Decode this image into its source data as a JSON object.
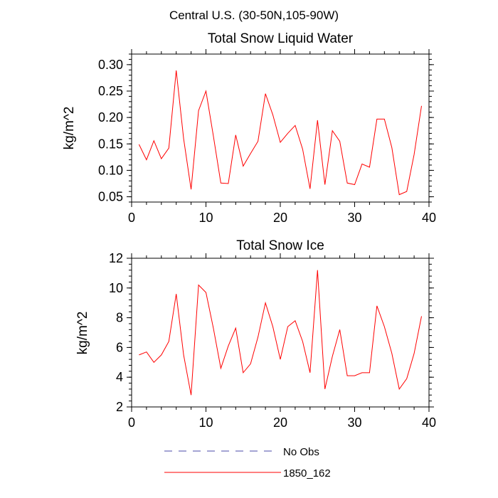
{
  "figure_title": "Central U.S. (30-50N,105-90W)",
  "chart_data": [
    {
      "type": "line",
      "title": "Total Snow Liquid Water",
      "xlabel": "",
      "ylabel": "kg/m^2",
      "xlim": [
        0,
        40
      ],
      "ylim": [
        0.04,
        0.32
      ],
      "x_ticks": [
        0,
        10,
        20,
        30,
        40
      ],
      "y_ticks": [
        0.05,
        0.1,
        0.15,
        0.2,
        0.25,
        0.3
      ],
      "y_tick_labels": [
        "0.05",
        "0.10",
        "0.15",
        "0.20",
        "0.25",
        "0.30"
      ],
      "x": [
        1,
        2,
        3,
        4,
        5,
        6,
        7,
        8,
        9,
        10,
        11,
        12,
        13,
        14,
        15,
        16,
        17,
        18,
        19,
        20,
        21,
        22,
        23,
        24,
        25,
        26,
        27,
        28,
        29,
        30,
        31,
        32,
        33,
        34,
        35,
        36,
        37,
        38,
        39
      ],
      "series": [
        {
          "name": "1850_162",
          "color": "#ff0000",
          "values": [
            0.149,
            0.12,
            0.156,
            0.122,
            0.142,
            0.289,
            0.16,
            0.064,
            0.213,
            0.25,
            0.165,
            0.076,
            0.075,
            0.167,
            0.108,
            0.132,
            0.155,
            0.245,
            0.205,
            0.153,
            0.17,
            0.185,
            0.14,
            0.065,
            0.195,
            0.073,
            0.175,
            0.155,
            0.076,
            0.073,
            0.112,
            0.106,
            0.197,
            0.197,
            0.143,
            0.054,
            0.06,
            0.13,
            0.222
          ]
        }
      ]
    },
    {
      "type": "line",
      "title": "Total Snow Ice",
      "xlabel": "",
      "ylabel": "kg/m^2",
      "xlim": [
        0,
        40
      ],
      "ylim": [
        2,
        12
      ],
      "x_ticks": [
        0,
        10,
        20,
        30,
        40
      ],
      "y_ticks": [
        2,
        4,
        6,
        8,
        10,
        12
      ],
      "y_tick_labels": [
        "2",
        "4",
        "6",
        "8",
        "10",
        "12"
      ],
      "x": [
        1,
        2,
        3,
        4,
        5,
        6,
        7,
        8,
        9,
        10,
        11,
        12,
        13,
        14,
        15,
        16,
        17,
        18,
        19,
        20,
        21,
        22,
        23,
        24,
        25,
        26,
        27,
        28,
        29,
        30,
        31,
        32,
        33,
        34,
        35,
        36,
        37,
        38,
        39
      ],
      "series": [
        {
          "name": "1850_162",
          "color": "#ff0000",
          "values": [
            5.5,
            5.7,
            5.0,
            5.5,
            6.4,
            9.6,
            5.5,
            2.8,
            10.2,
            9.7,
            7.3,
            4.6,
            6.1,
            7.3,
            4.3,
            4.9,
            6.7,
            9.0,
            7.4,
            5.2,
            7.4,
            7.8,
            6.4,
            4.3,
            11.2,
            3.2,
            5.4,
            7.2,
            4.1,
            4.1,
            4.3,
            4.3,
            8.8,
            7.4,
            5.6,
            3.2,
            3.9,
            5.6,
            8.1
          ]
        }
      ]
    }
  ],
  "legend": [
    {
      "label": "No Obs",
      "color": "#4a4aa8",
      "style": "dashed"
    },
    {
      "label": "1850_162",
      "color": "#ff0000",
      "style": "solid"
    }
  ]
}
